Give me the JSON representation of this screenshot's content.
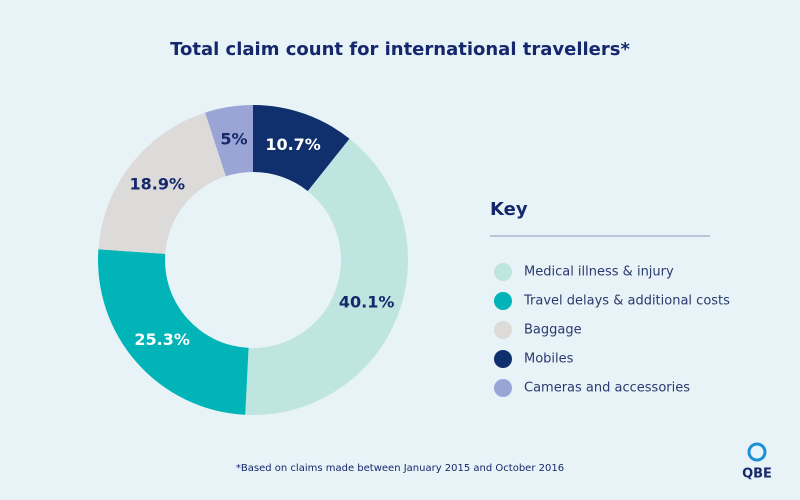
{
  "chart_data": {
    "type": "donut",
    "title": "Total claim count for international travellers*",
    "categories": [
      "Medical illness & injury",
      "Travel delays & additional costs",
      "Baggage",
      "Mobiles",
      "Cameras and accessories"
    ],
    "values": [
      40.1,
      25.3,
      18.9,
      10.7,
      5
    ],
    "value_labels": [
      "40.1%",
      "25.3%",
      "18.9%",
      "10.7%",
      "5%"
    ],
    "colors": [
      "#bfe5e0",
      "#00b4b7",
      "#dcdbd9",
      "#102f6d",
      "#9aa5d6"
    ],
    "legend_title": "Key",
    "footnote": "*Based on claims made between January 2015 and October 2016"
  },
  "logo": "QBE"
}
